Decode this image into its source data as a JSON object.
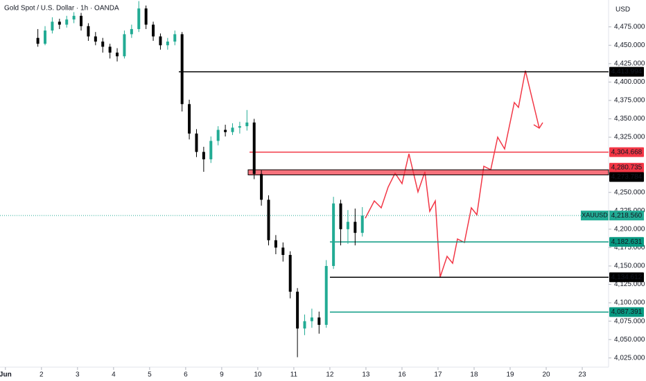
{
  "chart_data": {
    "type": "candlestick",
    "title": "Gold Spot / U.S. Dollar · 1h · OANDA",
    "currency": "USD",
    "symbol": "XAUUSD",
    "last_price": {
      "value": 4218.56,
      "label": "4,218.560"
    },
    "up_color": "#22ab94",
    "down_color": "#000000",
    "xlim": [
      -0.15,
      16.73
    ],
    "xticks": [
      {
        "value": 0,
        "label": "Jun"
      },
      {
        "value": 1,
        "label": "2"
      },
      {
        "value": 2,
        "label": "3"
      },
      {
        "value": 3,
        "label": "4"
      },
      {
        "value": 4,
        "label": "5"
      },
      {
        "value": 5,
        "label": "6"
      },
      {
        "value": 6,
        "label": "9"
      },
      {
        "value": 7,
        "label": "10"
      },
      {
        "value": 8,
        "label": "11"
      },
      {
        "value": 9,
        "label": "12"
      },
      {
        "value": 10,
        "label": "13"
      },
      {
        "value": 11,
        "label": "16"
      },
      {
        "value": 12,
        "label": "17"
      },
      {
        "value": 13,
        "label": "18"
      },
      {
        "value": 14,
        "label": "19"
      },
      {
        "value": 15,
        "label": "20"
      },
      {
        "value": 16,
        "label": "23"
      }
    ],
    "ylim": [
      4012.5,
      4511.5
    ],
    "yticks": [
      {
        "value": 4025,
        "label": "4,025.000"
      },
      {
        "value": 4050,
        "label": "4,050.000"
      },
      {
        "value": 4075,
        "label": "4,075.000"
      },
      {
        "value": 4100,
        "label": "4,100.000"
      },
      {
        "value": 4125,
        "label": "4,125.000"
      },
      {
        "value": 4150,
        "label": "4,150.000"
      },
      {
        "value": 4175,
        "label": "4,175.000"
      },
      {
        "value": 4200,
        "label": "4,200.000"
      },
      {
        "value": 4225,
        "label": "4,225.000"
      },
      {
        "value": 4250,
        "label": "4,250.000"
      },
      {
        "value": 4325,
        "label": "4,325.000"
      },
      {
        "value": 4350,
        "label": "4,350.000"
      },
      {
        "value": 4375,
        "label": "4,375.000"
      },
      {
        "value": 4400,
        "label": "4,400.000"
      },
      {
        "value": 4425,
        "label": "4,425.000"
      },
      {
        "value": 4450,
        "label": "4,450.000"
      },
      {
        "value": 4475,
        "label": "4,475.000"
      }
    ],
    "levels": [
      {
        "value": 4413.994,
        "label": "4,413.994",
        "color": "#000000"
      },
      {
        "value": 4304.668,
        "label": "4,304.668",
        "color": "#f23645"
      },
      {
        "value": 4280.735,
        "label": "4,280.735",
        "color": "#f23645"
      },
      {
        "value": 4273.784,
        "label": "4,273.784",
        "color": "#000000"
      },
      {
        "value": 4182.631,
        "label": "4,182.631",
        "color": "#089981"
      },
      {
        "value": 4134.612,
        "label": "4,134.612",
        "color": "#000000"
      },
      {
        "value": 4087.391,
        "label": "4,087.391",
        "color": "#089981"
      }
    ],
    "candles": [
      {
        "x": 0.9,
        "open": 4460,
        "high": 4472,
        "low": 4448,
        "close": 4452
      },
      {
        "x": 1.1,
        "open": 4452,
        "high": 4476,
        "low": 4450,
        "close": 4470
      },
      {
        "x": 1.3,
        "open": 4470,
        "high": 4488,
        "low": 4466,
        "close": 4482
      },
      {
        "x": 1.5,
        "open": 4482,
        "high": 4486,
        "low": 4472,
        "close": 4478
      },
      {
        "x": 1.7,
        "open": 4478,
        "high": 4490,
        "low": 4474,
        "close": 4485
      },
      {
        "x": 1.9,
        "open": 4485,
        "high": 4495,
        "low": 4480,
        "close": 4490
      },
      {
        "x": 2.1,
        "open": 4490,
        "high": 4494,
        "low": 4470,
        "close": 4476
      },
      {
        "x": 2.3,
        "open": 4476,
        "high": 4480,
        "low": 4456,
        "close": 4462
      },
      {
        "x": 2.5,
        "open": 4462,
        "high": 4468,
        "low": 4450,
        "close": 4455
      },
      {
        "x": 2.7,
        "open": 4455,
        "high": 4460,
        "low": 4440,
        "close": 4448
      },
      {
        "x": 2.9,
        "open": 4448,
        "high": 4452,
        "low": 4432,
        "close": 4440
      },
      {
        "x": 3.1,
        "open": 4440,
        "high": 4446,
        "low": 4428,
        "close": 4435
      },
      {
        "x": 3.3,
        "open": 4435,
        "high": 4470,
        "low": 4432,
        "close": 4465
      },
      {
        "x": 3.5,
        "open": 4465,
        "high": 4478,
        "low": 4460,
        "close": 4472
      },
      {
        "x": 3.7,
        "open": 4472,
        "high": 4510,
        "low": 4468,
        "close": 4500
      },
      {
        "x": 3.9,
        "open": 4500,
        "high": 4504,
        "low": 4472,
        "close": 4478
      },
      {
        "x": 4.1,
        "open": 4478,
        "high": 4482,
        "low": 4456,
        "close": 4462
      },
      {
        "x": 4.3,
        "open": 4462,
        "high": 4466,
        "low": 4444,
        "close": 4450
      },
      {
        "x": 4.5,
        "open": 4450,
        "high": 4460,
        "low": 4444,
        "close": 4455
      },
      {
        "x": 4.7,
        "open": 4455,
        "high": 4470,
        "low": 4450,
        "close": 4465
      },
      {
        "x": 4.9,
        "open": 4465,
        "high": 4468,
        "low": 4360,
        "close": 4370
      },
      {
        "x": 5.1,
        "open": 4370,
        "high": 4376,
        "low": 4322,
        "close": 4330
      },
      {
        "x": 5.3,
        "open": 4330,
        "high": 4336,
        "low": 4298,
        "close": 4305
      },
      {
        "x": 5.5,
        "open": 4305,
        "high": 4312,
        "low": 4278,
        "close": 4295
      },
      {
        "x": 5.7,
        "open": 4295,
        "high": 4326,
        "low": 4290,
        "close": 4320
      },
      {
        "x": 5.9,
        "open": 4320,
        "high": 4340,
        "low": 4314,
        "close": 4335
      },
      {
        "x": 6.1,
        "open": 4335,
        "high": 4342,
        "low": 4326,
        "close": 4332
      },
      {
        "x": 6.3,
        "open": 4332,
        "high": 4344,
        "low": 4328,
        "close": 4338
      },
      {
        "x": 6.5,
        "open": 4338,
        "high": 4346,
        "low": 4330,
        "close": 4340
      },
      {
        "x": 6.7,
        "open": 4340,
        "high": 4362,
        "low": 4334,
        "close": 4345
      },
      {
        "x": 6.9,
        "open": 4345,
        "high": 4350,
        "low": 4268,
        "close": 4275
      },
      {
        "x": 7.1,
        "open": 4275,
        "high": 4280,
        "low": 4232,
        "close": 4240
      },
      {
        "x": 7.3,
        "open": 4240,
        "high": 4246,
        "low": 4178,
        "close": 4185
      },
      {
        "x": 7.5,
        "open": 4185,
        "high": 4192,
        "low": 4166,
        "close": 4175
      },
      {
        "x": 7.7,
        "open": 4175,
        "high": 4182,
        "low": 4156,
        "close": 4165
      },
      {
        "x": 7.9,
        "open": 4165,
        "high": 4170,
        "low": 4106,
        "close": 4115
      },
      {
        "x": 8.1,
        "open": 4115,
        "high": 4120,
        "low": 4026,
        "close": 4065
      },
      {
        "x": 8.3,
        "open": 4065,
        "high": 4084,
        "low": 4056,
        "close": 4075
      },
      {
        "x": 8.5,
        "open": 4075,
        "high": 4092,
        "low": 4066,
        "close": 4080
      },
      {
        "x": 8.7,
        "open": 4080,
        "high": 4088,
        "low": 4058,
        "close": 4070
      },
      {
        "x": 8.9,
        "open": 4070,
        "high": 4158,
        "low": 4066,
        "close": 4150
      },
      {
        "x": 9.1,
        "open": 4150,
        "high": 4244,
        "low": 4146,
        "close": 4235
      },
      {
        "x": 9.3,
        "open": 4235,
        "high": 4240,
        "low": 4178,
        "close": 4200
      },
      {
        "x": 9.5,
        "open": 4200,
        "high": 4226,
        "low": 4180,
        "close": 4210
      },
      {
        "x": 9.7,
        "open": 4210,
        "high": 4228,
        "low": 4178,
        "close": 4195
      },
      {
        "x": 9.9,
        "open": 4195,
        "high": 4230,
        "low": 4190,
        "close": 4218.56
      }
    ]
  }
}
